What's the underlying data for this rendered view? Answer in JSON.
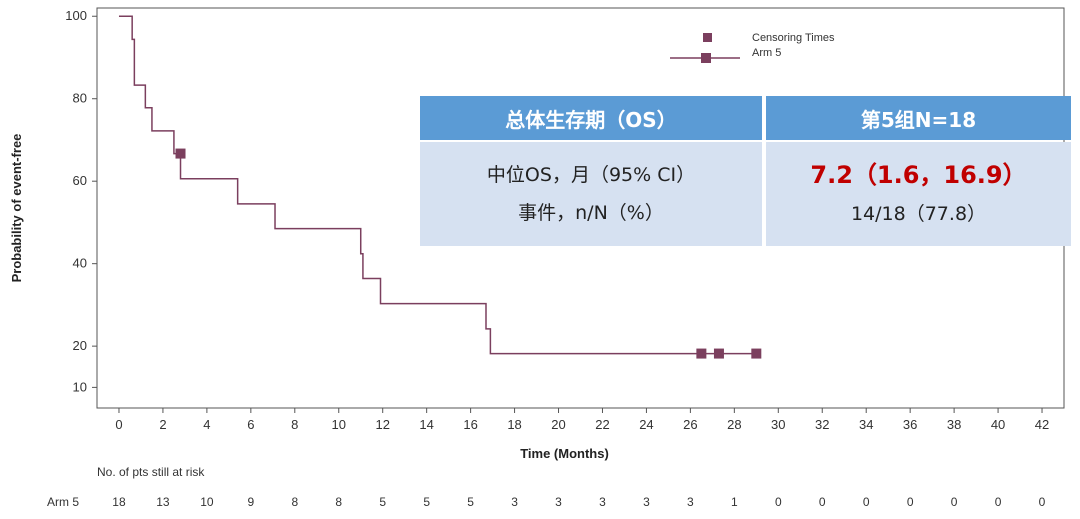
{
  "chart_data": {
    "type": "line",
    "xlabel": "Time (Months)",
    "ylabel": "Probability of event-free",
    "xlim": [
      -1,
      43
    ],
    "ylim": [
      5,
      102
    ],
    "x_ticks": [
      0,
      2,
      4,
      6,
      8,
      10,
      12,
      14,
      16,
      18,
      20,
      22,
      24,
      26,
      28,
      30,
      32,
      34,
      36,
      38,
      40,
      42
    ],
    "y_ticks": [
      10,
      20,
      40,
      60,
      80,
      100
    ],
    "grid": false,
    "legend_position": "top-right",
    "legend": {
      "censor_label": "Censoring Times",
      "series_label": "Arm 5"
    },
    "series": [
      {
        "name": "Arm 5",
        "color": "#7b3f5e",
        "step_points": [
          [
            0,
            100
          ],
          [
            0.6,
            100
          ],
          [
            0.6,
            94.4
          ],
          [
            0.7,
            94.4
          ],
          [
            0.7,
            83.3
          ],
          [
            1.2,
            83.3
          ],
          [
            1.2,
            77.8
          ],
          [
            1.5,
            77.8
          ],
          [
            1.5,
            72.2
          ],
          [
            2.5,
            72.2
          ],
          [
            2.5,
            66.7
          ],
          [
            2.8,
            66.7
          ],
          [
            2.8,
            60.6
          ],
          [
            5.4,
            60.6
          ],
          [
            5.4,
            54.5
          ],
          [
            7.1,
            54.5
          ],
          [
            7.1,
            48.5
          ],
          [
            11,
            48.5
          ],
          [
            11,
            42.4
          ],
          [
            11.1,
            42.4
          ],
          [
            11.1,
            36.4
          ],
          [
            11.9,
            36.4
          ],
          [
            11.9,
            30.3
          ],
          [
            16.7,
            30.3
          ],
          [
            16.7,
            24.2
          ],
          [
            16.9,
            24.2
          ],
          [
            16.9,
            18.2
          ],
          [
            29,
            18.2
          ]
        ],
        "censor_points": [
          [
            2.8,
            66.7
          ],
          [
            26.5,
            18.2
          ],
          [
            27.3,
            18.2
          ],
          [
            29,
            18.2
          ]
        ]
      }
    ],
    "risk_table": {
      "title": "No. of pts still at risk",
      "row_label": "Arm 5",
      "times": [
        0,
        2,
        4,
        6,
        8,
        10,
        12,
        14,
        16,
        18,
        20,
        22,
        24,
        26,
        28,
        30,
        32,
        34,
        36,
        38,
        40,
        42
      ],
      "values": [
        18,
        13,
        10,
        9,
        8,
        8,
        5,
        5,
        5,
        3,
        3,
        3,
        3,
        3,
        1,
        0,
        0,
        0,
        0,
        0,
        0,
        0
      ]
    }
  },
  "table": {
    "header_left": "总体生存期（OS）",
    "header_right": "第5组N=18",
    "row_label_1": "中位OS，月（95% CI）",
    "row_label_2": "事件，n/N（%）",
    "value_1": "7.2（1.6，16.9）",
    "value_2": "14/18（77.8）",
    "colors": {
      "header": "#5b9bd5",
      "body": "#d6e1f1",
      "highlight": "#c00000"
    }
  }
}
